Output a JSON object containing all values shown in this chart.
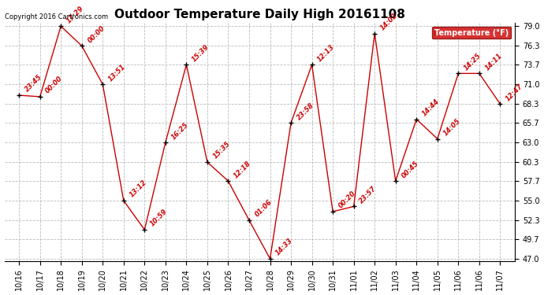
{
  "title": "Outdoor Temperature Daily High 20161108",
  "copyright": "Copyright 2016 Cartronics.com",
  "legend_label": "Temperature (°F)",
  "x_labels": [
    "10/16",
    "10/17",
    "10/18",
    "10/19",
    "10/20",
    "10/21",
    "10/22",
    "10/23",
    "10/24",
    "10/25",
    "10/26",
    "10/27",
    "10/28",
    "10/29",
    "10/30",
    "10/31",
    "11/01",
    "11/02",
    "11/03",
    "11/04",
    "11/05",
    "11/06",
    "11/06",
    "11/07"
  ],
  "y_values": [
    69.5,
    69.3,
    79.0,
    76.3,
    71.0,
    55.0,
    51.0,
    63.0,
    73.7,
    60.3,
    57.7,
    52.3,
    47.0,
    65.7,
    73.7,
    53.5,
    54.2,
    78.0,
    57.7,
    66.2,
    63.5,
    72.5,
    72.5,
    68.3
  ],
  "annotations": [
    "23:45",
    "00:00",
    "17:29",
    "00:00",
    "13:51",
    "13:12",
    "10:59",
    "16:25",
    "15:39",
    "15:35",
    "12:18",
    "01:06",
    "14:33",
    "23:58",
    "12:13",
    "00:20",
    "23:57",
    "14:02",
    "00:45",
    "14:44",
    "14:05",
    "14:25",
    "14:11",
    "12:47"
  ],
  "y_min": 47.0,
  "y_max": 79.0,
  "y_ticks": [
    47.0,
    49.7,
    52.3,
    55.0,
    57.7,
    60.3,
    63.0,
    65.7,
    68.3,
    71.0,
    73.7,
    76.3,
    79.0
  ],
  "line_color": "#cc0000",
  "marker_color": "#000000",
  "annotation_color": "#cc0000",
  "background_color": "#ffffff",
  "grid_color": "#bbbbbb",
  "legend_bg": "#cc0000",
  "legend_text_color": "#ffffff",
  "title_fontsize": 11,
  "annotation_fontsize": 6,
  "copyright_fontsize": 6,
  "tick_fontsize": 7,
  "ytick_fontsize": 7
}
